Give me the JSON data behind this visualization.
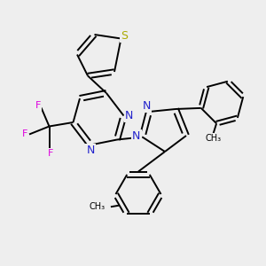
{
  "bg_color": "#eeeeee",
  "bond_color": "#000000",
  "N_color": "#2222cc",
  "S_color": "#aaaa00",
  "F_color": "#dd00dd",
  "lw": 1.4,
  "figsize": [
    3.0,
    3.0
  ],
  "dpi": 100,
  "xlim": [
    0,
    10
  ],
  "ylim": [
    0,
    10
  ]
}
